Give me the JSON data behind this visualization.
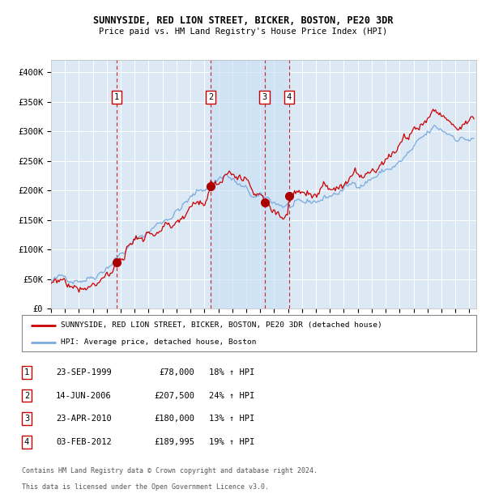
{
  "title1": "SUNNYSIDE, RED LION STREET, BICKER, BOSTON, PE20 3DR",
  "title2": "Price paid vs. HM Land Registry's House Price Index (HPI)",
  "ylim": [
    0,
    420000
  ],
  "yticks": [
    0,
    50000,
    100000,
    150000,
    200000,
    250000,
    300000,
    350000,
    400000
  ],
  "ytick_labels": [
    "£0",
    "£50K",
    "£100K",
    "£150K",
    "£200K",
    "£250K",
    "£300K",
    "£350K",
    "£400K"
  ],
  "xlim_start": 1995.0,
  "xlim_end": 2025.5,
  "background_color": "#ffffff",
  "plot_bg_color": "#dce9f5",
  "grid_color": "#ffffff",
  "red_line_color": "#cc0000",
  "blue_line_color": "#7aaadd",
  "sale_marker_color": "#aa0000",
  "dashed_line_color": "#cc0000",
  "shade_color": "#c8dff5",
  "transactions": [
    {
      "num": 1,
      "date_x": 1999.72,
      "price": 78000,
      "date_str": "23-SEP-1999",
      "price_str": "£78,000",
      "hpi_pct": "18% ↑ HPI"
    },
    {
      "num": 2,
      "date_x": 2006.45,
      "price": 207500,
      "date_str": "14-JUN-2006",
      "price_str": "£207,500",
      "hpi_pct": "24% ↑ HPI"
    },
    {
      "num": 3,
      "date_x": 2010.31,
      "price": 180000,
      "date_str": "23-APR-2010",
      "price_str": "£180,000",
      "hpi_pct": "13% ↑ HPI"
    },
    {
      "num": 4,
      "date_x": 2012.08,
      "price": 189995,
      "date_str": "03-FEB-2012",
      "price_str": "£189,995",
      "hpi_pct": "19% ↑ HPI"
    }
  ],
  "legend_label_red": "SUNNYSIDE, RED LION STREET, BICKER, BOSTON, PE20 3DR (detached house)",
  "legend_label_blue": "HPI: Average price, detached house, Boston",
  "footer1": "Contains HM Land Registry data © Crown copyright and database right 2024.",
  "footer2": "This data is licensed under the Open Government Licence v3.0."
}
